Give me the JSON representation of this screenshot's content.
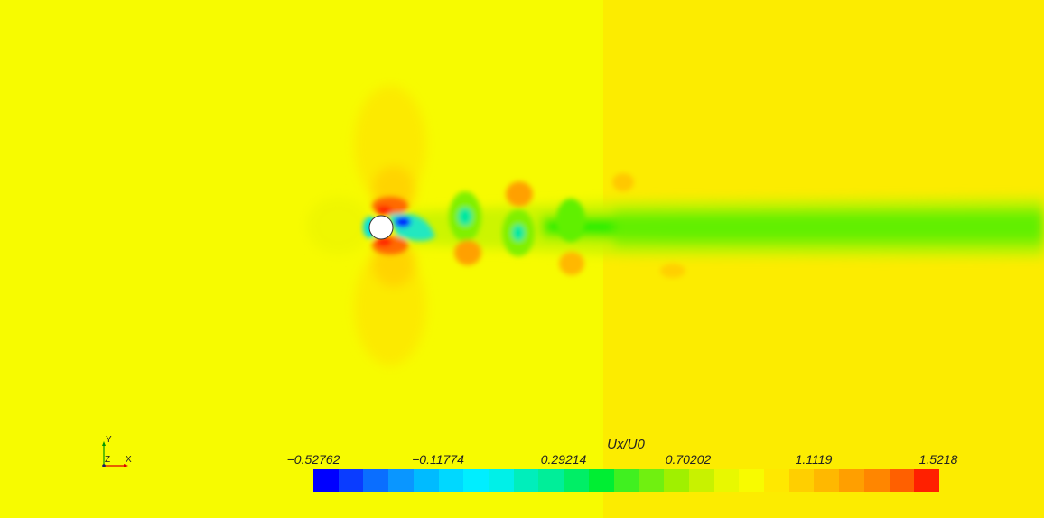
{
  "colorbar": {
    "title": "Ux/U0",
    "ticks": [
      "−0.52762",
      "−0.11774",
      "0.29214",
      "0.70202",
      "1.1119",
      "1.5218"
    ],
    "colors": [
      "#0000ff",
      "#0a3cff",
      "#0a6eff",
      "#0a96ff",
      "#00bbff",
      "#00d8ff",
      "#00eeff",
      "#00f0e8",
      "#00eebb",
      "#00ee99",
      "#00ee66",
      "#00ee33",
      "#40f020",
      "#70f010",
      "#a0f000",
      "#c8f200",
      "#e8f800",
      "#f8fb00",
      "#ffe800",
      "#ffcf00",
      "#ffb800",
      "#ff9f00",
      "#ff8600",
      "#ff6000",
      "#ff2000"
    ]
  },
  "field_colors": {
    "free_stream_left": "#f7fb00",
    "free_stream_right": "#fcec00",
    "wake_core": "#22ee00",
    "wake_outer": "#a8f200",
    "high_speed": "#ff8a00",
    "peak": "#ff2a00",
    "recirculation": "#0018ff",
    "cylinder_fill": "#ffffff"
  },
  "triad": {
    "x_label": "X",
    "y_label": "Y",
    "z_label": "Z"
  }
}
